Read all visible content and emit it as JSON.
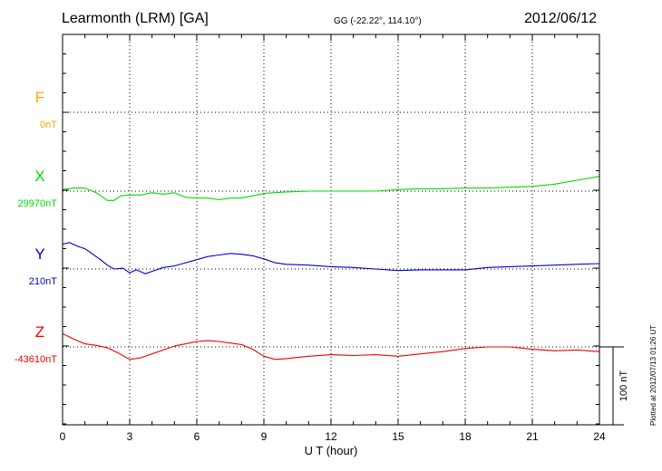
{
  "header": {
    "station": "Learmonth (LRM)  [GA]",
    "coords": "GG (-22.22°, 114.10°)",
    "date": "2012/06/12",
    "plotted": "Plotted at 2012/07/13 01:26 UT"
  },
  "chart_data": {
    "type": "line",
    "xlabel": "U T (hour)",
    "xlim": [
      0,
      24
    ],
    "xticks": [
      "0",
      "3",
      "6",
      "9",
      "12",
      "15",
      "18",
      "21",
      "24"
    ],
    "scale_bar_label": "100 nT",
    "grid": true,
    "series": [
      {
        "name": "F",
        "baseline_label": "0nT",
        "color": "#ffa500",
        "x": [],
        "values": []
      },
      {
        "name": "X",
        "baseline_label": "29970nT",
        "color": "#00dd00",
        "x": [
          0,
          0.5,
          1,
          1.5,
          2,
          2.3,
          2.6,
          3,
          3.5,
          4,
          4.5,
          5,
          5.5,
          6,
          6.5,
          7,
          7.5,
          8,
          8.5,
          9,
          9.5,
          10,
          11,
          12,
          13,
          14,
          15,
          16,
          17,
          18,
          19,
          20,
          21,
          22,
          23,
          24
        ],
        "values": [
          2,
          4,
          4,
          -2,
          -12,
          -12,
          -6,
          -5,
          -5,
          -2,
          -4,
          -2,
          -8,
          -9,
          -9,
          -11,
          -9,
          -9,
          -6,
          -3,
          -2,
          -1,
          0,
          0,
          0,
          0,
          2,
          3,
          3,
          4,
          4,
          5,
          6,
          9,
          14,
          19
        ]
      },
      {
        "name": "Y",
        "baseline_label": "210nT",
        "color": "#0000cc",
        "x": [
          0,
          0.3,
          0.7,
          1,
          1.3,
          1.7,
          2,
          2.3,
          2.7,
          3,
          3.3,
          3.7,
          4,
          4.5,
          5,
          5.5,
          6,
          6.5,
          7,
          7.5,
          8,
          8.5,
          9,
          9.5,
          10,
          11,
          12,
          13,
          14,
          15,
          16,
          17,
          18,
          19,
          20,
          21,
          22,
          23,
          24
        ],
        "values": [
          32,
          34,
          29,
          26,
          20,
          12,
          5,
          0,
          1,
          -5,
          -1,
          -6,
          -3,
          2,
          4,
          8,
          12,
          16,
          18,
          20,
          19,
          17,
          13,
          8,
          6,
          5,
          3,
          2,
          0,
          -2,
          -1,
          -1,
          -1,
          2,
          3,
          4,
          5,
          6,
          7
        ]
      },
      {
        "name": "Z",
        "baseline_label": "-43610nT",
        "color": "#ee0000",
        "x": [
          0,
          0.5,
          1,
          1.5,
          2,
          2.5,
          3,
          3.5,
          4,
          4.5,
          5,
          5.5,
          6,
          6.5,
          7,
          7.5,
          8,
          8.5,
          9,
          9.5,
          10,
          11,
          12,
          13,
          14,
          15,
          16,
          17,
          18,
          19,
          20,
          21,
          22,
          23,
          24
        ],
        "values": [
          17,
          10,
          4,
          2,
          -1,
          -8,
          -16,
          -14,
          -9,
          -4,
          1,
          4,
          7,
          8,
          7,
          5,
          3,
          -3,
          -12,
          -16,
          -15,
          -12,
          -10,
          -11,
          -10,
          -12,
          -9,
          -6,
          -2,
          0,
          0,
          -3,
          -5,
          -4,
          -6
        ]
      }
    ]
  }
}
